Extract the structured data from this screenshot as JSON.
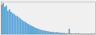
{
  "chart_data": {
    "type": "bar",
    "categories": [
      null,
      null,
      null,
      null,
      null,
      null,
      null,
      null,
      null,
      null,
      null,
      null,
      null,
      null,
      null,
      null,
      null,
      null,
      null,
      null,
      null,
      null,
      null,
      null,
      null,
      null,
      null,
      null,
      null,
      null,
      null,
      null,
      null,
      null,
      null,
      null,
      null,
      null,
      null,
      null,
      null,
      null,
      null,
      null,
      null,
      null,
      null,
      null,
      null,
      null,
      null,
      null,
      null,
      null,
      null,
      null,
      null,
      null,
      null,
      null
    ],
    "values": [
      95,
      100,
      88,
      92,
      75,
      80,
      72,
      68,
      65,
      60,
      58,
      54,
      50,
      46,
      42,
      40,
      36,
      33,
      30,
      27,
      25,
      22,
      20,
      18,
      16,
      14,
      13,
      12,
      11,
      10,
      9,
      8,
      8,
      7,
      6,
      7,
      6,
      5,
      5,
      4,
      4,
      3,
      3,
      17,
      3,
      2,
      2,
      3,
      2,
      3,
      2,
      2,
      2,
      2,
      2,
      2,
      2,
      2,
      2,
      2
    ],
    "color": "#5ba8d8",
    "ylim": [
      0,
      105
    ],
    "tick_labels": false
  }
}
